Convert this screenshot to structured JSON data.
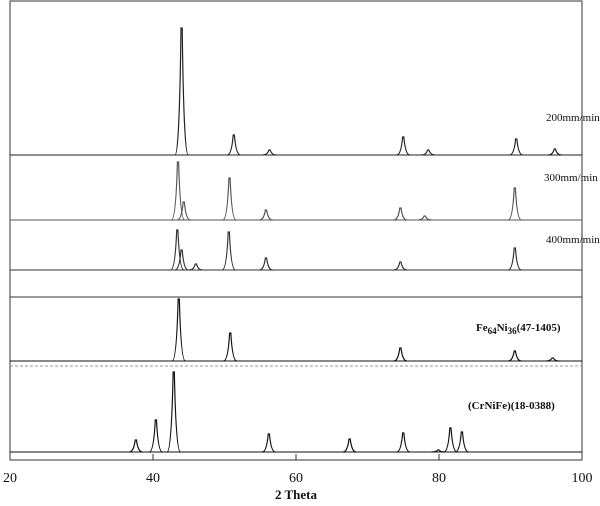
{
  "chart_data": {
    "type": "xrd",
    "xlabel": "2 Theta",
    "xlim": [
      20,
      100
    ],
    "xticks": [
      20,
      40,
      60,
      80,
      100
    ],
    "series": [
      {
        "name": [
          "200mm/min"
        ],
        "color": "#222222",
        "x": [
          44.0,
          51.3,
          56.3,
          75.0,
          78.5,
          90.8,
          96.2
        ],
        "values": [
          127,
          20,
          5,
          18,
          5,
          16,
          6
        ]
      },
      {
        "name": [
          "300mm/min"
        ],
        "color": "#555555",
        "x": [
          43.5,
          44.3,
          50.7,
          55.8,
          74.6,
          78.0,
          90.6
        ],
        "values": [
          58,
          18,
          42,
          10,
          12,
          4,
          32
        ]
      },
      {
        "name": [
          "400mm/min"
        ],
        "color": "#333333",
        "x": [
          43.4,
          44.0,
          46.0,
          50.6,
          55.8,
          74.6,
          90.6
        ],
        "values": [
          40,
          20,
          6,
          38,
          12,
          8,
          22
        ]
      },
      {
        "name": [
          "Fe",
          "64",
          "Ni",
          "36",
          "(47-1405)"
        ],
        "color": "#111111",
        "x": [
          43.6,
          50.8,
          74.6,
          90.6,
          95.9
        ],
        "values": [
          62,
          28,
          13,
          10,
          3
        ]
      },
      {
        "name": [
          "(CrNiFe)(18-0388)"
        ],
        "color": "#111111",
        "x": [
          37.6,
          40.4,
          42.9,
          56.2,
          67.5,
          75.0,
          79.9,
          81.6,
          83.2
        ],
        "values": [
          12,
          32,
          80,
          18,
          13,
          19,
          2,
          24,
          20
        ]
      }
    ]
  }
}
